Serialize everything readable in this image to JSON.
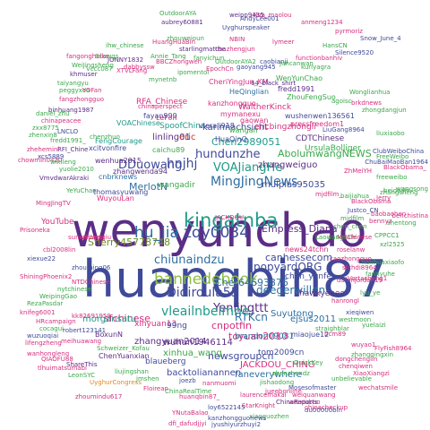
{
  "palette": {
    "purple": "#5b2d86",
    "indigo": "#3f4a9a",
    "blue": "#2d6fa3",
    "teal": "#1f9a8a",
    "green": "#3aa84a",
    "lime": "#8cbf3f",
    "olive": "#6b8e23",
    "orange": "#e08a1e",
    "pink": "#d62f7f",
    "red": "#c0392b",
    "gray": "#666666"
  },
  "words": [
    {
      "text": "wenyunchao",
      "color": "#5b2d86"
    },
    {
      "text": "huanqbin87",
      "color": "#3f4a9a"
    },
    {
      "text": "hu_jia",
      "color": "#2d6fa3"
    },
    {
      "text": "zqy0034",
      "color": "#3f4a9a"
    },
    {
      "text": "kingatnba",
      "color": "#1f9a8a"
    },
    {
      "text": "bannedebook",
      "color": "#8cbf3f"
    },
    {
      "text": "MingJingNews",
      "color": "#2d6fa3"
    },
    {
      "text": "VOAJiangHe",
      "color": "#1f9a8a"
    },
    {
      "text": "hundunzhe",
      "color": "#3f4a9a"
    },
    {
      "text": "Chen2989051",
      "color": "#1f9a8a"
    },
    {
      "text": "karinnachsicht",
      "color": "#3f4a9a"
    },
    {
      "text": "AbolumwangNEWS",
      "color": "#3aa84a"
    },
    {
      "text": "zhangweiguo",
      "color": "#5b2d86"
    },
    {
      "text": "mulplas95035",
      "color": "#3f4a9a"
    },
    {
      "text": "chiunaindzu",
      "color": "#2d6fa3"
    },
    {
      "text": "Didiroula55",
      "color": "#3f4a9a"
    },
    {
      "text": "popyardORG",
      "color": "#3f4a9a"
    },
    {
      "text": "deegerwillen",
      "color": "#2d6fa3"
    },
    {
      "text": "Empress_Diana",
      "color": "#5b2d86"
    },
    {
      "text": "Sherry45778748",
      "color": "#6b8e23"
    },
    {
      "text": "Yenlingttt",
      "color": "#5b2d86"
    },
    {
      "text": "vleailnbeimne",
      "color": "#1f9a8a"
    },
    {
      "text": "Cher64693876",
      "color": "#2d6fa3"
    },
    {
      "text": "wuhan1946114",
      "color": "#5b2d86"
    },
    {
      "text": "RTKcn",
      "color": "#2d6fa3"
    },
    {
      "text": "Suyutong",
      "color": "#2d6fa3"
    },
    {
      "text": "chen_yunfei",
      "color": "#3f4a9a"
    },
    {
      "text": "hawkyeeee",
      "color": "#5b2d86"
    },
    {
      "text": "sfchinese",
      "color": "#d62f7f"
    },
    {
      "text": "DDuowang",
      "color": "#3f4a9a"
    },
    {
      "text": "MerlotN",
      "color": "#2d6fa3"
    },
    {
      "text": "wangadir",
      "color": "#3aa84a"
    },
    {
      "text": "hnjhj",
      "color": "#3f4a9a"
    },
    {
      "text": "linling01",
      "color": "#5b2d86"
    },
    {
      "text": "eric",
      "color": "#c0392b"
    },
    {
      "text": "ericbingzhongli",
      "color": "#d62f7f"
    },
    {
      "text": "WaltherKinck",
      "color": "#d62f7f"
    },
    {
      "text": "xinyuan13",
      "color": "#d62f7f"
    },
    {
      "text": "zhangyuan2014",
      "color": "#5b2d86"
    },
    {
      "text": "cnpotfin",
      "color": "#d62f7f"
    },
    {
      "text": "newsgroupcn",
      "color": "#3f4a9a"
    },
    {
      "text": "toyuan2010",
      "color": "#d62f7f"
    },
    {
      "text": "99ng",
      "color": "#3f4a9a"
    },
    {
      "text": "morgansatu",
      "color": "#1f9a8a"
    },
    {
      "text": "xinhua_wang",
      "color": "#3aa84a"
    },
    {
      "text": "blaueberg",
      "color": "#3f4a9a"
    },
    {
      "text": "JACKDOU_CHING",
      "color": "#d62f7f"
    },
    {
      "text": "backtolianannen",
      "color": "#3f4a9a"
    },
    {
      "text": "faneverywhere",
      "color": "#2d6fa3"
    },
    {
      "text": "brandon09081",
      "color": "#2d6fa3"
    },
    {
      "text": "tom2009cn",
      "color": "#3f4a9a"
    },
    {
      "text": "miaojue12",
      "color": "#3f4a9a"
    },
    {
      "text": "ejsus2011",
      "color": "#2d6fa3"
    },
    {
      "text": "YouTube",
      "color": "#d62f7f"
    },
    {
      "text": "canhessecom",
      "color": "#3f4a9a"
    },
    {
      "text": "news24tchn",
      "color": "#d62f7f"
    },
    {
      "text": "CDTChinese",
      "color": "#5b2d86"
    },
    {
      "text": "UrsulaBolliger",
      "color": "#3aa84a"
    },
    {
      "text": "SpoofChina",
      "color": "#1f9a8a"
    },
    {
      "text": "RFA_Chinese",
      "color": "#d62f7f"
    },
    {
      "text": "VOAChinese",
      "color": "#1f9a8a"
    },
    {
      "text": "wenhua2015",
      "color": "#5b2d86"
    },
    {
      "text": "cnbrknews",
      "color": "#2d6fa3"
    },
    {
      "text": "zhangwenda94",
      "color": "#5b2d86"
    },
    {
      "text": "thomasyuwang",
      "color": "#3f4a9a"
    },
    {
      "text": "WuyouLan",
      "color": "#d62f7f"
    },
    {
      "text": "FengCourage",
      "color": "#1f9a8a"
    },
    {
      "text": "xcitvonfire",
      "color": "#3f4a9a"
    },
    {
      "text": "caichu89",
      "color": "#3aa84a"
    },
    {
      "text": "fayan999",
      "color": "#3f4a9a"
    },
    {
      "text": "LeFon",
      "color": "#d62f7f"
    },
    {
      "text": "CheriYingJun_KM",
      "color": "#d62f7f"
    },
    {
      "text": "HeQinglian",
      "color": "#2d6fa3"
    },
    {
      "text": "mymanexu",
      "color": "#d62f7f"
    },
    {
      "text": "kanzhongguo",
      "color": "#d62f7f"
    },
    {
      "text": "vleraii918",
      "color": "#3f4a9a"
    },
    {
      "text": "wushenwen136561",
      "color": "#3f4a9a"
    },
    {
      "text": "ZhouFengSuo",
      "color": "#3aa84a"
    },
    {
      "text": "pressfreedom1",
      "color": "#d62f7f"
    },
    {
      "text": "fredd1991",
      "color": "#5b2d86"
    },
    {
      "text": "WenYunChao",
      "color": "#3aa84a"
    },
    {
      "text": "HuaQinQ",
      "color": "#3f4a9a"
    },
    {
      "text": "gaowan",
      "color": "#d62f7f"
    },
    {
      "text": "wangan",
      "color": "#3aa84a"
    },
    {
      "text": "chinaperspect",
      "color": "#d62f7f"
    },
    {
      "text": "cbazhengjun",
      "color": "#d62f7f"
    },
    {
      "text": "Uyghurspeaker",
      "color": "#3f4a9a"
    },
    {
      "text": "anmeng1234",
      "color": "#d62f7f"
    },
    {
      "text": "NBIN",
      "color": "#d62f7f"
    },
    {
      "text": "Hua_maolou",
      "color": "#d62f7f"
    },
    {
      "text": "weipp9435",
      "color": "#5b2d86"
    },
    {
      "text": "AndyLee001",
      "color": "#3f4a9a"
    },
    {
      "text": "aubrey60881",
      "color": "#5b2d86"
    },
    {
      "text": "OutdoorAYA",
      "color": "#3aa84a"
    },
    {
      "text": "Annie_Tang",
      "color": "#3aa84a"
    },
    {
      "text": "BBCZhongwen",
      "color": "#d62f7f"
    },
    {
      "text": "pyrmoriz",
      "color": "#d62f7f"
    },
    {
      "text": "lymeer",
      "color": "#d62f7f"
    },
    {
      "text": "freeweibo",
      "color": "#3aa84a"
    },
    {
      "text": "BlackObama",
      "color": "#d62f7f"
    },
    {
      "text": "Justco_CN",
      "color": "#3f4a9a"
    },
    {
      "text": "mjdfilm",
      "color": "#3aa84a"
    },
    {
      "text": "chen_chen",
      "color": "#3aa84a"
    },
    {
      "text": "roselanw",
      "color": "#d62f7f"
    },
    {
      "text": "caozhongguo",
      "color": "#d62f7f"
    },
    {
      "text": "sfchdi8964",
      "color": "#d62f7f"
    },
    {
      "text": "fannyuhe",
      "color": "#3aa84a"
    },
    {
      "text": "Vortasheng1",
      "color": "#d62f7f"
    },
    {
      "text": "hanrongl",
      "color": "#d62f7f"
    },
    {
      "text": "dafonjordan19",
      "color": "#d62f7f"
    },
    {
      "text": "lyu_ye",
      "color": "#3aa84a"
    },
    {
      "text": "xieqiwen",
      "color": "#3f4a9a"
    },
    {
      "text": "westmoon",
      "color": "#3aa84a"
    },
    {
      "text": "straighblar",
      "color": "#3aa84a"
    },
    {
      "text": "bcm89",
      "color": "#d62f7f"
    },
    {
      "text": "dongchenglin",
      "color": "#d62f7f"
    },
    {
      "text": "chenqiwen",
      "color": "#d62f7f"
    },
    {
      "text": "wuyao1",
      "color": "#d62f7f"
    },
    {
      "text": "yuelaizi",
      "color": "#3aa84a"
    },
    {
      "text": "FlyFish8964",
      "color": "#d62f7f"
    },
    {
      "text": "zhangqingxin",
      "color": "#3aa84a"
    },
    {
      "text": "XiaoXiangzi",
      "color": "#d62f7f"
    },
    {
      "text": "unbelievable",
      "color": "#3aa84a"
    },
    {
      "text": "wechatsmile",
      "color": "#d62f7f"
    },
    {
      "text": "QuickKey",
      "color": "#3aa84a"
    },
    {
      "text": "zhenzhendz",
      "color": "#3aa84a"
    },
    {
      "text": "Mosesofmaster",
      "color": "#3f4a9a"
    },
    {
      "text": "weiquanwang",
      "color": "#d62f7f"
    },
    {
      "text": "weixiubao",
      "color": "#d62f7f"
    },
    {
      "text": "chinacheckup",
      "color": "#d62f7f"
    },
    {
      "text": "du00000bin",
      "color": "#3f4a9a"
    },
    {
      "text": "jishaodong",
      "color": "#3aa84a"
    },
    {
      "text": "jueebonline",
      "color": "#d62f7f"
    },
    {
      "text": "ChinaReports",
      "color": "#5b2d86"
    },
    {
      "text": "laurencemakai",
      "color": "#d62f7f"
    },
    {
      "text": "StarKnight",
      "color": "#d62f7f"
    },
    {
      "text": "loy6522145",
      "color": "#3f4a9a"
    },
    {
      "text": "xiaoguozhen",
      "color": "#3aa84a"
    },
    {
      "text": "kanzhongguonews",
      "color": "#3f4a9a"
    },
    {
      "text": "jyushiyurzhuyi2",
      "color": "#3f4a9a"
    },
    {
      "text": "YNutaBalao",
      "color": "#d62f7f"
    },
    {
      "text": "dfi_dafudjjyi",
      "color": "#d62f7f"
    },
    {
      "text": "ChinaRealTime",
      "color": "#3aa84a"
    },
    {
      "text": "jmshen",
      "color": "#3aa84a"
    },
    {
      "text": "Floirean",
      "color": "#d62f7f"
    },
    {
      "text": "joezb",
      "color": "#3f4a9a"
    },
    {
      "text": "nanmuomi",
      "color": "#d62f7f"
    },
    {
      "text": "liujingshan",
      "color": "#3aa84a"
    },
    {
      "text": "UyghurCongress",
      "color": "#e08a1e"
    },
    {
      "text": "zhoumindu617",
      "color": "#d62f7f"
    },
    {
      "text": "ShareThis",
      "color": "#5b2d86"
    },
    {
      "text": "LeonSYC",
      "color": "#3aa84a"
    },
    {
      "text": "tlhuimatsumabi",
      "color": "#d62f7f"
    },
    {
      "text": "wanhongleng",
      "color": "#d62f7f"
    },
    {
      "text": "lifengzheng",
      "color": "#d62f7f"
    },
    {
      "text": "QIAOFU88",
      "color": "#d62f7f"
    },
    {
      "text": "cocagui",
      "color": "#3aa84a"
    },
    {
      "text": "wuzuoqiai",
      "color": "#3f4a9a"
    },
    {
      "text": "meihuawang",
      "color": "#d62f7f"
    },
    {
      "text": "robert123141",
      "color": "#3f4a9a"
    },
    {
      "text": "kk82691959",
      "color": "#d62f7f"
    },
    {
      "text": "HRcampaign",
      "color": "#d62f7f"
    },
    {
      "text": "knifeg6001",
      "color": "#d62f7f"
    },
    {
      "text": "RezaPasdar",
      "color": "#3aa84a"
    },
    {
      "text": "WeipingGao",
      "color": "#3aa84a"
    },
    {
      "text": "NTDChinese",
      "color": "#d62f7f"
    },
    {
      "text": "nytchinese",
      "color": "#3aa84a"
    },
    {
      "text": "cbl2008lin",
      "color": "#d62f7f"
    },
    {
      "text": "xiexue22",
      "color": "#3f4a9a"
    },
    {
      "text": "zhouming06",
      "color": "#3f4a9a"
    },
    {
      "text": "ShiningPhoenix2",
      "color": "#d62f7f"
    },
    {
      "text": "Prisoneka",
      "color": "#d62f7f"
    },
    {
      "text": "sunweitang",
      "color": "#d62f7f"
    },
    {
      "text": "MingJingTV",
      "color": "#d62f7f"
    },
    {
      "text": "YeYuChan",
      "color": "#3aa84a"
    },
    {
      "text": "VmvdwarAkraki",
      "color": "#5b2d86"
    },
    {
      "text": "yuolie2010",
      "color": "#3aa84a"
    },
    {
      "text": "chowmin0420",
      "color": "#d62f7f"
    },
    {
      "text": "xcs5889",
      "color": "#3f4a9a"
    },
    {
      "text": "wikileng",
      "color": "#3aa84a"
    },
    {
      "text": "ChenYuanxian",
      "color": "#5b2d86"
    },
    {
      "text": "BoxunN",
      "color": "#5b2d86"
    },
    {
      "text": "Schweizer_Kofau",
      "color": "#3aa84a"
    },
    {
      "text": "chenzhuo",
      "color": "#3aa84a"
    },
    {
      "text": "zhehemini",
      "color": "#d62f7f"
    },
    {
      "text": "RFI_Chine",
      "color": "#5b2d86"
    },
    {
      "text": "fredd1991_",
      "color": "#3aa84a"
    },
    {
      "text": "chinapeacee",
      "color": "#d62f7f"
    },
    {
      "text": "daniel_zhu",
      "color": "#3aa84a"
    },
    {
      "text": "zxx8775",
      "color": "#3aa84a"
    },
    {
      "text": "zhenxin8",
      "color": "#3aa84a"
    },
    {
      "text": "LNCLO",
      "color": "#3f4a9a"
    },
    {
      "text": "binhuang1987",
      "color": "#5b2d86"
    },
    {
      "text": "fangzhongguo",
      "color": "#d62f7f"
    },
    {
      "text": "taiyangyu",
      "color": "#3aa84a"
    },
    {
      "text": "khmuser",
      "color": "#5b2d86"
    },
    {
      "text": "YOFan",
      "color": "#d62f7f"
    },
    {
      "text": "Vccc087",
      "color": "#3aa84a"
    },
    {
      "text": "WeiJingsheng",
      "color": "#3aa84a"
    },
    {
      "text": "peggyxoa",
      "color": "#3aa84a"
    },
    {
      "text": "fangonghelke",
      "color": "#d62f7f"
    },
    {
      "text": "Scawgs",
      "color": "#3aa84a"
    },
    {
      "text": "ihw_chinese",
      "color": "#3aa84a"
    },
    {
      "text": "XTVLFang",
      "color": "#d62f7f"
    },
    {
      "text": "dabbyssw",
      "color": "#d62f7f"
    },
    {
      "text": "JONNY1832",
      "color": "#5b2d86"
    },
    {
      "text": "mynetnb",
      "color": "#3aa84a"
    },
    {
      "text": "HuangHuaBin",
      "color": "#d62f7f"
    },
    {
      "text": "zhouweioun",
      "color": "#3aa84a"
    },
    {
      "text": "starlingmatthe",
      "color": "#5b2d86"
    },
    {
      "text": "fanyichun",
      "color": "#3aa84a"
    },
    {
      "text": "ipomentoi",
      "color": "#3aa84a"
    },
    {
      "text": "EpochCn",
      "color": "#d62f7f"
    },
    {
      "text": "OutdoorAYA2",
      "color": "#3aa84a"
    },
    {
      "text": "gaoyang945",
      "color": "#3f4a9a"
    },
    {
      "text": "caobianji",
      "color": "#3f4a9a"
    },
    {
      "text": "64_black_shirt",
      "color": "#5b2d86"
    },
    {
      "text": "juncanwan",
      "color": "#3aa84a"
    },
    {
      "text": "functionbanhiv",
      "color": "#d62f7f"
    },
    {
      "text": "kuriyagra",
      "color": "#3aa84a"
    },
    {
      "text": "HansCN",
      "color": "#3aa84a"
    },
    {
      "text": "Silence9520",
      "color": "#3f4a9a"
    },
    {
      "text": "Snow_June_4",
      "color": "#3f4a9a"
    },
    {
      "text": "agoisc",
      "color": "#3aa84a"
    },
    {
      "text": "brkdnews",
      "color": "#d62f7f"
    },
    {
      "text": "LiuGang8964",
      "color": "#3f4a9a"
    },
    {
      "text": "ZhMeiYH",
      "color": "#d62f7f"
    },
    {
      "text": "Wonglianhua",
      "color": "#3aa84a"
    },
    {
      "text": "zhongdangjun",
      "color": "#3aa84a"
    },
    {
      "text": "liuxiaobo",
      "color": "#3aa84a"
    },
    {
      "text": "ClubWeiboChina",
      "color": "#3f4a9a"
    },
    {
      "text": "ChuBaiMaoBan1964",
      "color": "#3f4a9a"
    },
    {
      "text": "FreeWeibo",
      "color": "#3aa84a"
    },
    {
      "text": "BlackObama_",
      "color": "#d62f7f"
    },
    {
      "text": "Jerry",
      "color": "#d62f7f"
    },
    {
      "text": "beidaijin",
      "color": "#3aa84a"
    },
    {
      "text": "zhangsheng",
      "color": "#3aa84a"
    },
    {
      "text": "baijiahua",
      "color": "#3aa84a"
    },
    {
      "text": "mjdfilm_",
      "color": "#d62f7f"
    },
    {
      "text": "CPPCC1",
      "color": "#3aa84a"
    },
    {
      "text": "xzl2525",
      "color": "#3aa84a"
    },
    {
      "text": "lianhuaxiaofo",
      "color": "#3aa84a"
    },
    {
      "text": "bennyz",
      "color": "#d62f7f"
    },
    {
      "text": "shentong",
      "color": "#3aa84a"
    },
    {
      "text": "baobaohen",
      "color": "#d62f7f"
    },
    {
      "text": "wangsong",
      "color": "#3aa84a"
    },
    {
      "text": "benchistina",
      "color": "#d62f7f"
    },
    {
      "text": "Laowangsafe",
      "color": "#3aa84a"
    },
    {
      "text": "MHChinese",
      "color": "#d62f7f"
    },
    {
      "text": "zhangqiu",
      "color": "#d62f7f"
    },
    {
      "text": "huanqbin87_",
      "color": "#d62f7f"
    },
    {
      "text": "JACKDOU",
      "color": "#d62f7f"
    }
  ]
}
